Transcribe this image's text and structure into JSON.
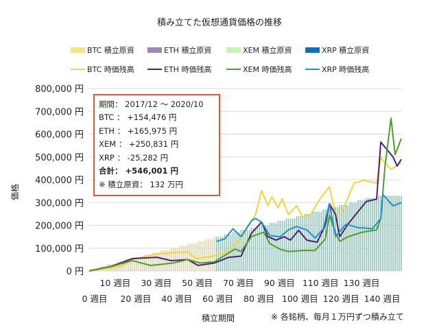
{
  "chart_data": {
    "type": "line",
    "title": "積み立てた仮想通貨価格の推移",
    "xlabel": "積立期間",
    "ylabel": "価格",
    "note": "※ 各銘柄、毎月１万円ずつ積み立て",
    "ylim": [
      0,
      800000
    ],
    "xlim": [
      0,
      152
    ],
    "grid": true,
    "legend_position": "top",
    "y_ticks": [
      {
        "value": 0,
        "label": "0 円"
      },
      {
        "value": 100000,
        "label": "100,000 円"
      },
      {
        "value": 200000,
        "label": "200,000 円"
      },
      {
        "value": 300000,
        "label": "300,000 円"
      },
      {
        "value": 400000,
        "label": "400,000 円"
      },
      {
        "value": 500000,
        "label": "500,000 円"
      },
      {
        "value": 600000,
        "label": "600,000 円"
      },
      {
        "value": 700000,
        "label": "700,000 円"
      },
      {
        "value": 800000,
        "label": "800,000 円"
      }
    ],
    "x_ticks": [
      {
        "value": 0,
        "label": "0 週目"
      },
      {
        "value": 10,
        "label": "10 週目"
      },
      {
        "value": 20,
        "label": "20 週目"
      },
      {
        "value": 30,
        "label": "30 週目"
      },
      {
        "value": 40,
        "label": "40 週目"
      },
      {
        "value": 50,
        "label": "50 週目"
      },
      {
        "value": 60,
        "label": "60 週目"
      },
      {
        "value": 70,
        "label": "70 週目"
      },
      {
        "value": 80,
        "label": "80 週目"
      },
      {
        "value": 90,
        "label": "90 週目"
      },
      {
        "value": 100,
        "label": "100 週目"
      },
      {
        "value": 110,
        "label": "110 週目"
      },
      {
        "value": 120,
        "label": "120 週目"
      },
      {
        "value": 130,
        "label": "130 週目"
      },
      {
        "value": 140,
        "label": "140 週目"
      }
    ],
    "legend": [
      {
        "label": "BTC  積立原資",
        "kind": "bar",
        "color": "#ffe083"
      },
      {
        "label": "ETH  積立原資",
        "kind": "bar",
        "color": "#9e86b8"
      },
      {
        "label": "XEM  積立原資",
        "kind": "bar",
        "color": "#c6f5b8"
      },
      {
        "label": "XRP  積立原資",
        "kind": "bar",
        "color": "#0a6fc0"
      },
      {
        "label": "BTC  時価残高",
        "kind": "line",
        "color": "#f5d33a"
      },
      {
        "label": "ETH  時価残高",
        "kind": "line",
        "color": "#4b1e78"
      },
      {
        "label": "XEM  時価残高",
        "kind": "line",
        "color": "#4e9e2a"
      },
      {
        "label": "XRP  時価残高",
        "kind": "line",
        "color": "#1f8fd0"
      }
    ],
    "principal_bars": {
      "monthly_amount": 10000,
      "btc_eth_xem_start_week": 0,
      "xrp_start_week": 62,
      "colors": {
        "early": "#d8d4ae",
        "late": "#8ec2b8"
      }
    },
    "series": [
      {
        "name": "BTC  時価残高",
        "color": "#f5d33a",
        "x": [
          0,
          16,
          21,
          33,
          48,
          52,
          61,
          68,
          74,
          81,
          84,
          87,
          89,
          92,
          94,
          97,
          101,
          104,
          108,
          112,
          117,
          120,
          123,
          129,
          134,
          140,
          142,
          147,
          152
        ],
        "y": [
          0,
          21000,
          51000,
          75000,
          84000,
          54000,
          66000,
          84000,
          144000,
          247000,
          352000,
          286000,
          325000,
          277000,
          316000,
          247000,
          286000,
          235000,
          250000,
          310000,
          370000,
          247000,
          256000,
          385000,
          397000,
          385000,
          496000,
          445000,
          475000
        ]
      },
      {
        "name": "ETH  時価残高",
        "color": "#4b1e78",
        "x": [
          0,
          11,
          21,
          33,
          40,
          48,
          53,
          61,
          68,
          74,
          79,
          84,
          87,
          91,
          95,
          98,
          102,
          106,
          111,
          115,
          117,
          120,
          122,
          126,
          135,
          140,
          142,
          148,
          150,
          152
        ],
        "y": [
          0,
          21000,
          54000,
          60000,
          45000,
          50000,
          24000,
          35000,
          60000,
          65000,
          165000,
          214000,
          150000,
          135000,
          150000,
          135000,
          178000,
          135000,
          126000,
          200000,
          295000,
          247000,
          150000,
          205000,
          305000,
          315000,
          565000,
          500000,
          460000,
          490000
        ]
      },
      {
        "name": "XEM  時価残高",
        "color": "#4e9e2a",
        "x": [
          0,
          11,
          21,
          30,
          41,
          48,
          54,
          61,
          71,
          74,
          79,
          85,
          88,
          93,
          97,
          104,
          110,
          115,
          117,
          120,
          122,
          126,
          133,
          140,
          142,
          144,
          147,
          149,
          152
        ],
        "y": [
          0,
          20000,
          45000,
          24000,
          35000,
          50000,
          35000,
          40000,
          96000,
          85000,
          150000,
          170000,
          120000,
          95000,
          85000,
          90000,
          90000,
          140000,
          245000,
          165000,
          130000,
          150000,
          170000,
          180000,
          230000,
          455000,
          670000,
          510000,
          580000
        ]
      },
      {
        "name": "XRP  時価残高",
        "color": "#1f8fd0",
        "x": [
          62,
          66,
          70,
          74,
          79,
          81,
          84,
          88,
          93,
          97,
          101,
          106,
          110,
          114,
          117,
          120,
          125,
          131,
          138,
          142,
          143,
          148,
          152
        ],
        "y": [
          130000,
          140000,
          185000,
          150000,
          220000,
          230000,
          214000,
          155000,
          150000,
          180000,
          195000,
          180000,
          145000,
          185000,
          295000,
          150000,
          205000,
          190000,
          185000,
          230000,
          335000,
          285000,
          300000
        ]
      }
    ]
  },
  "summary_box": {
    "period": "期間： 2017/12 ～ 2020/10",
    "btc": "BTC ： +154,476 円",
    "eth": "ETH ： +165,975 円",
    "xem": "XEM ： +250,831 円",
    "xrp": "XRP ： -25,282 円",
    "total": "合計： +546,001 円",
    "principal": "※ 積立原資： 132 万円",
    "border_color": "#e8542c"
  }
}
